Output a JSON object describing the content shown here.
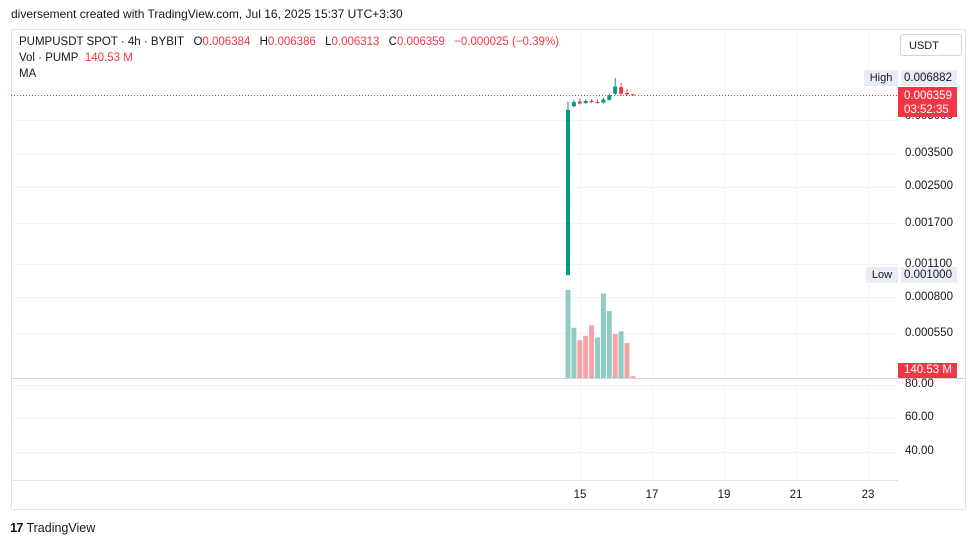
{
  "credit": "diversement created with TradingView.com, Jul 16, 2025 15:37 UTC+3:30",
  "legend": {
    "symbol": "PUMPUSDT SPOT · 4h · BYBIT",
    "open_label": "O",
    "open": "0.006384",
    "high_label": "H",
    "high": "0.006386",
    "low_label": "L",
    "low": "0.006313",
    "close_label": "C",
    "close": "0.006359",
    "change": "−0.000025 (−0.39%)",
    "vol_label": "Vol · PUMP",
    "vol_value": "140.53 M",
    "ma_label": "MA"
  },
  "currency": "USDT",
  "price_axis": [
    "0.003500",
    "0.002500",
    "0.001700",
    "0.001100",
    "0.000800",
    "0.000550"
  ],
  "partial_axis_label": "0.005000",
  "volume_axis": [
    "80.00",
    "60.00",
    "40.00"
  ],
  "high_marker": {
    "label": "High",
    "value": "0.006882"
  },
  "low_marker": {
    "label": "Low",
    "value": "0.001000"
  },
  "last_price": {
    "value": "0.006359",
    "countdown": "03:52:35"
  },
  "volume_tag": "140.53 M",
  "date_axis": [
    "15",
    "17",
    "19",
    "21",
    "23"
  ],
  "colors": {
    "up": "#089981",
    "down": "#f23645",
    "vol_up": "#8fcdc2",
    "vol_down": "#f2a4a9",
    "last_line": "#f23645"
  },
  "chart_data": {
    "type": "candlestick",
    "interval": "4h",
    "candles": [
      {
        "o": 0.001,
        "h": 0.006,
        "l": 0.001,
        "c": 0.00555,
        "dir": "up"
      },
      {
        "o": 0.00575,
        "h": 0.0061,
        "l": 0.0057,
        "c": 0.00598,
        "dir": "up"
      },
      {
        "o": 0.006,
        "h": 0.00618,
        "l": 0.00585,
        "c": 0.0059,
        "dir": "down"
      },
      {
        "o": 0.00592,
        "h": 0.00612,
        "l": 0.00588,
        "c": 0.00603,
        "dir": "up"
      },
      {
        "o": 0.00604,
        "h": 0.00614,
        "l": 0.00592,
        "c": 0.00598,
        "dir": "down"
      },
      {
        "o": 0.00598,
        "h": 0.0061,
        "l": 0.0059,
        "c": 0.00595,
        "dir": "down"
      },
      {
        "o": 0.00595,
        "h": 0.0062,
        "l": 0.0059,
        "c": 0.00612,
        "dir": "up"
      },
      {
        "o": 0.0061,
        "h": 0.0064,
        "l": 0.00605,
        "c": 0.00635,
        "dir": "up"
      },
      {
        "o": 0.0064,
        "h": 0.00688,
        "l": 0.00635,
        "c": 0.00662,
        "dir": "up"
      },
      {
        "o": 0.0066,
        "h": 0.00672,
        "l": 0.0063,
        "c": 0.0064,
        "dir": "down"
      },
      {
        "o": 0.00642,
        "h": 0.00655,
        "l": 0.00632,
        "c": 0.00638,
        "dir": "down"
      },
      {
        "o": 0.006384,
        "h": 0.006386,
        "l": 0.006313,
        "c": 0.006359,
        "dir": "down"
      }
    ],
    "volume": [
      {
        "v": 100,
        "dir": "up"
      },
      {
        "v": 57,
        "dir": "up"
      },
      {
        "v": 43,
        "dir": "down"
      },
      {
        "v": 48,
        "dir": "down"
      },
      {
        "v": 60,
        "dir": "down"
      },
      {
        "v": 46,
        "dir": "up"
      },
      {
        "v": 96,
        "dir": "up"
      },
      {
        "v": 76,
        "dir": "up"
      },
      {
        "v": 50,
        "dir": "down"
      },
      {
        "v": 53,
        "dir": "up"
      },
      {
        "v": 40,
        "dir": "down"
      },
      {
        "v": 2,
        "dir": "down"
      }
    ]
  }
}
